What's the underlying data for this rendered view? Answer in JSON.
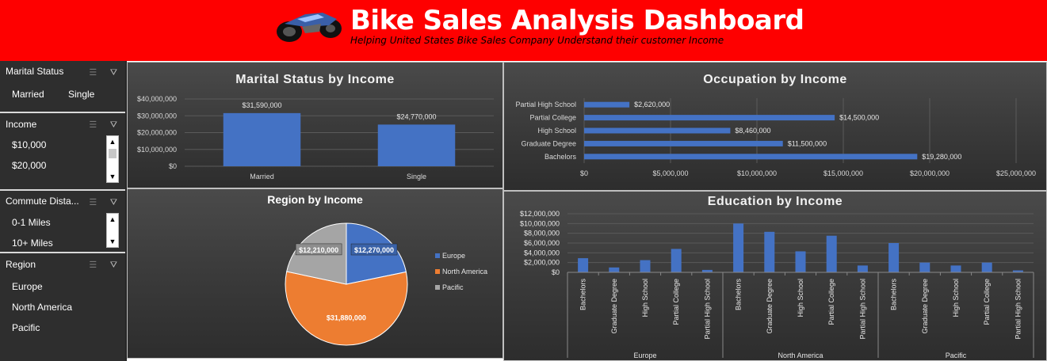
{
  "header": {
    "title": "Bike Sales Analysis Dashboard",
    "subtitle": "Helping United States Bike Sales Company Understand their customer Income"
  },
  "slicers": [
    {
      "title": "Marital Status",
      "items": [
        "Married",
        "Single"
      ]
    },
    {
      "title": "Income",
      "items": [
        "$10,000",
        "$20,000"
      ]
    },
    {
      "title": "Commute Dista...",
      "items": [
        "0-1 Miles",
        "10+ Miles"
      ]
    },
    {
      "title": "Region",
      "items": [
        "Europe",
        "North America",
        "Pacific"
      ]
    }
  ],
  "colors": {
    "bar": "#4472c4",
    "europe": "#4472c4",
    "north_america": "#ed7d31",
    "pacific": "#a5a5a5",
    "header": "#fe0000"
  },
  "chart_data": [
    {
      "type": "bar",
      "title": "Marital Status by Income",
      "categories": [
        "Married",
        "Single"
      ],
      "values": [
        31590000,
        24770000
      ],
      "data_labels": [
        "$31,590,000",
        "$24,770,000"
      ],
      "ylim": [
        0,
        40000000
      ],
      "y_ticks": [
        "$0",
        "$10,000,000",
        "$20,000,000",
        "$30,000,000",
        "$40,000,000"
      ]
    },
    {
      "type": "bar",
      "orientation": "horizontal",
      "title": "Occupation by Income",
      "categories": [
        "Partial High School",
        "Partial College",
        "High School",
        "Graduate Degree",
        "Bachelors"
      ],
      "values": [
        2620000,
        14500000,
        8460000,
        11500000,
        19280000
      ],
      "data_labels": [
        "$2,620,000",
        "$14,500,000",
        "$8,460,000",
        "$11,500,000",
        "$19,280,000"
      ],
      "xlim": [
        0,
        25000000
      ],
      "x_ticks": [
        "$0",
        "$5,000,000",
        "$10,000,000",
        "$15,000,000",
        "$20,000,000",
        "$25,000,000"
      ]
    },
    {
      "type": "pie",
      "title": "Region by Income",
      "categories": [
        "Europe",
        "North America",
        "Pacific"
      ],
      "values": [
        12270000,
        31880000,
        12210000
      ],
      "data_labels": [
        "$12,270,000",
        "$31,880,000",
        "$12,210,000"
      ],
      "legend": "right"
    },
    {
      "type": "bar",
      "title": "Education by Income",
      "groups": [
        "Europe",
        "North America",
        "Pacific"
      ],
      "categories": [
        "Bachelors",
        "Graduate Degree",
        "High School",
        "Partial College",
        "Partial High School"
      ],
      "values": [
        [
          2900000,
          1000000,
          2500000,
          4800000,
          500000
        ],
        [
          10000000,
          8300000,
          4300000,
          7500000,
          1400000
        ],
        [
          6000000,
          2000000,
          1400000,
          2000000,
          400000
        ]
      ],
      "ylim": [
        0,
        12000000
      ],
      "y_ticks": [
        "$0",
        "$2,000,000",
        "$4,000,000",
        "$6,000,000",
        "$8,000,000",
        "$10,000,000",
        "$12,000,000"
      ]
    }
  ]
}
